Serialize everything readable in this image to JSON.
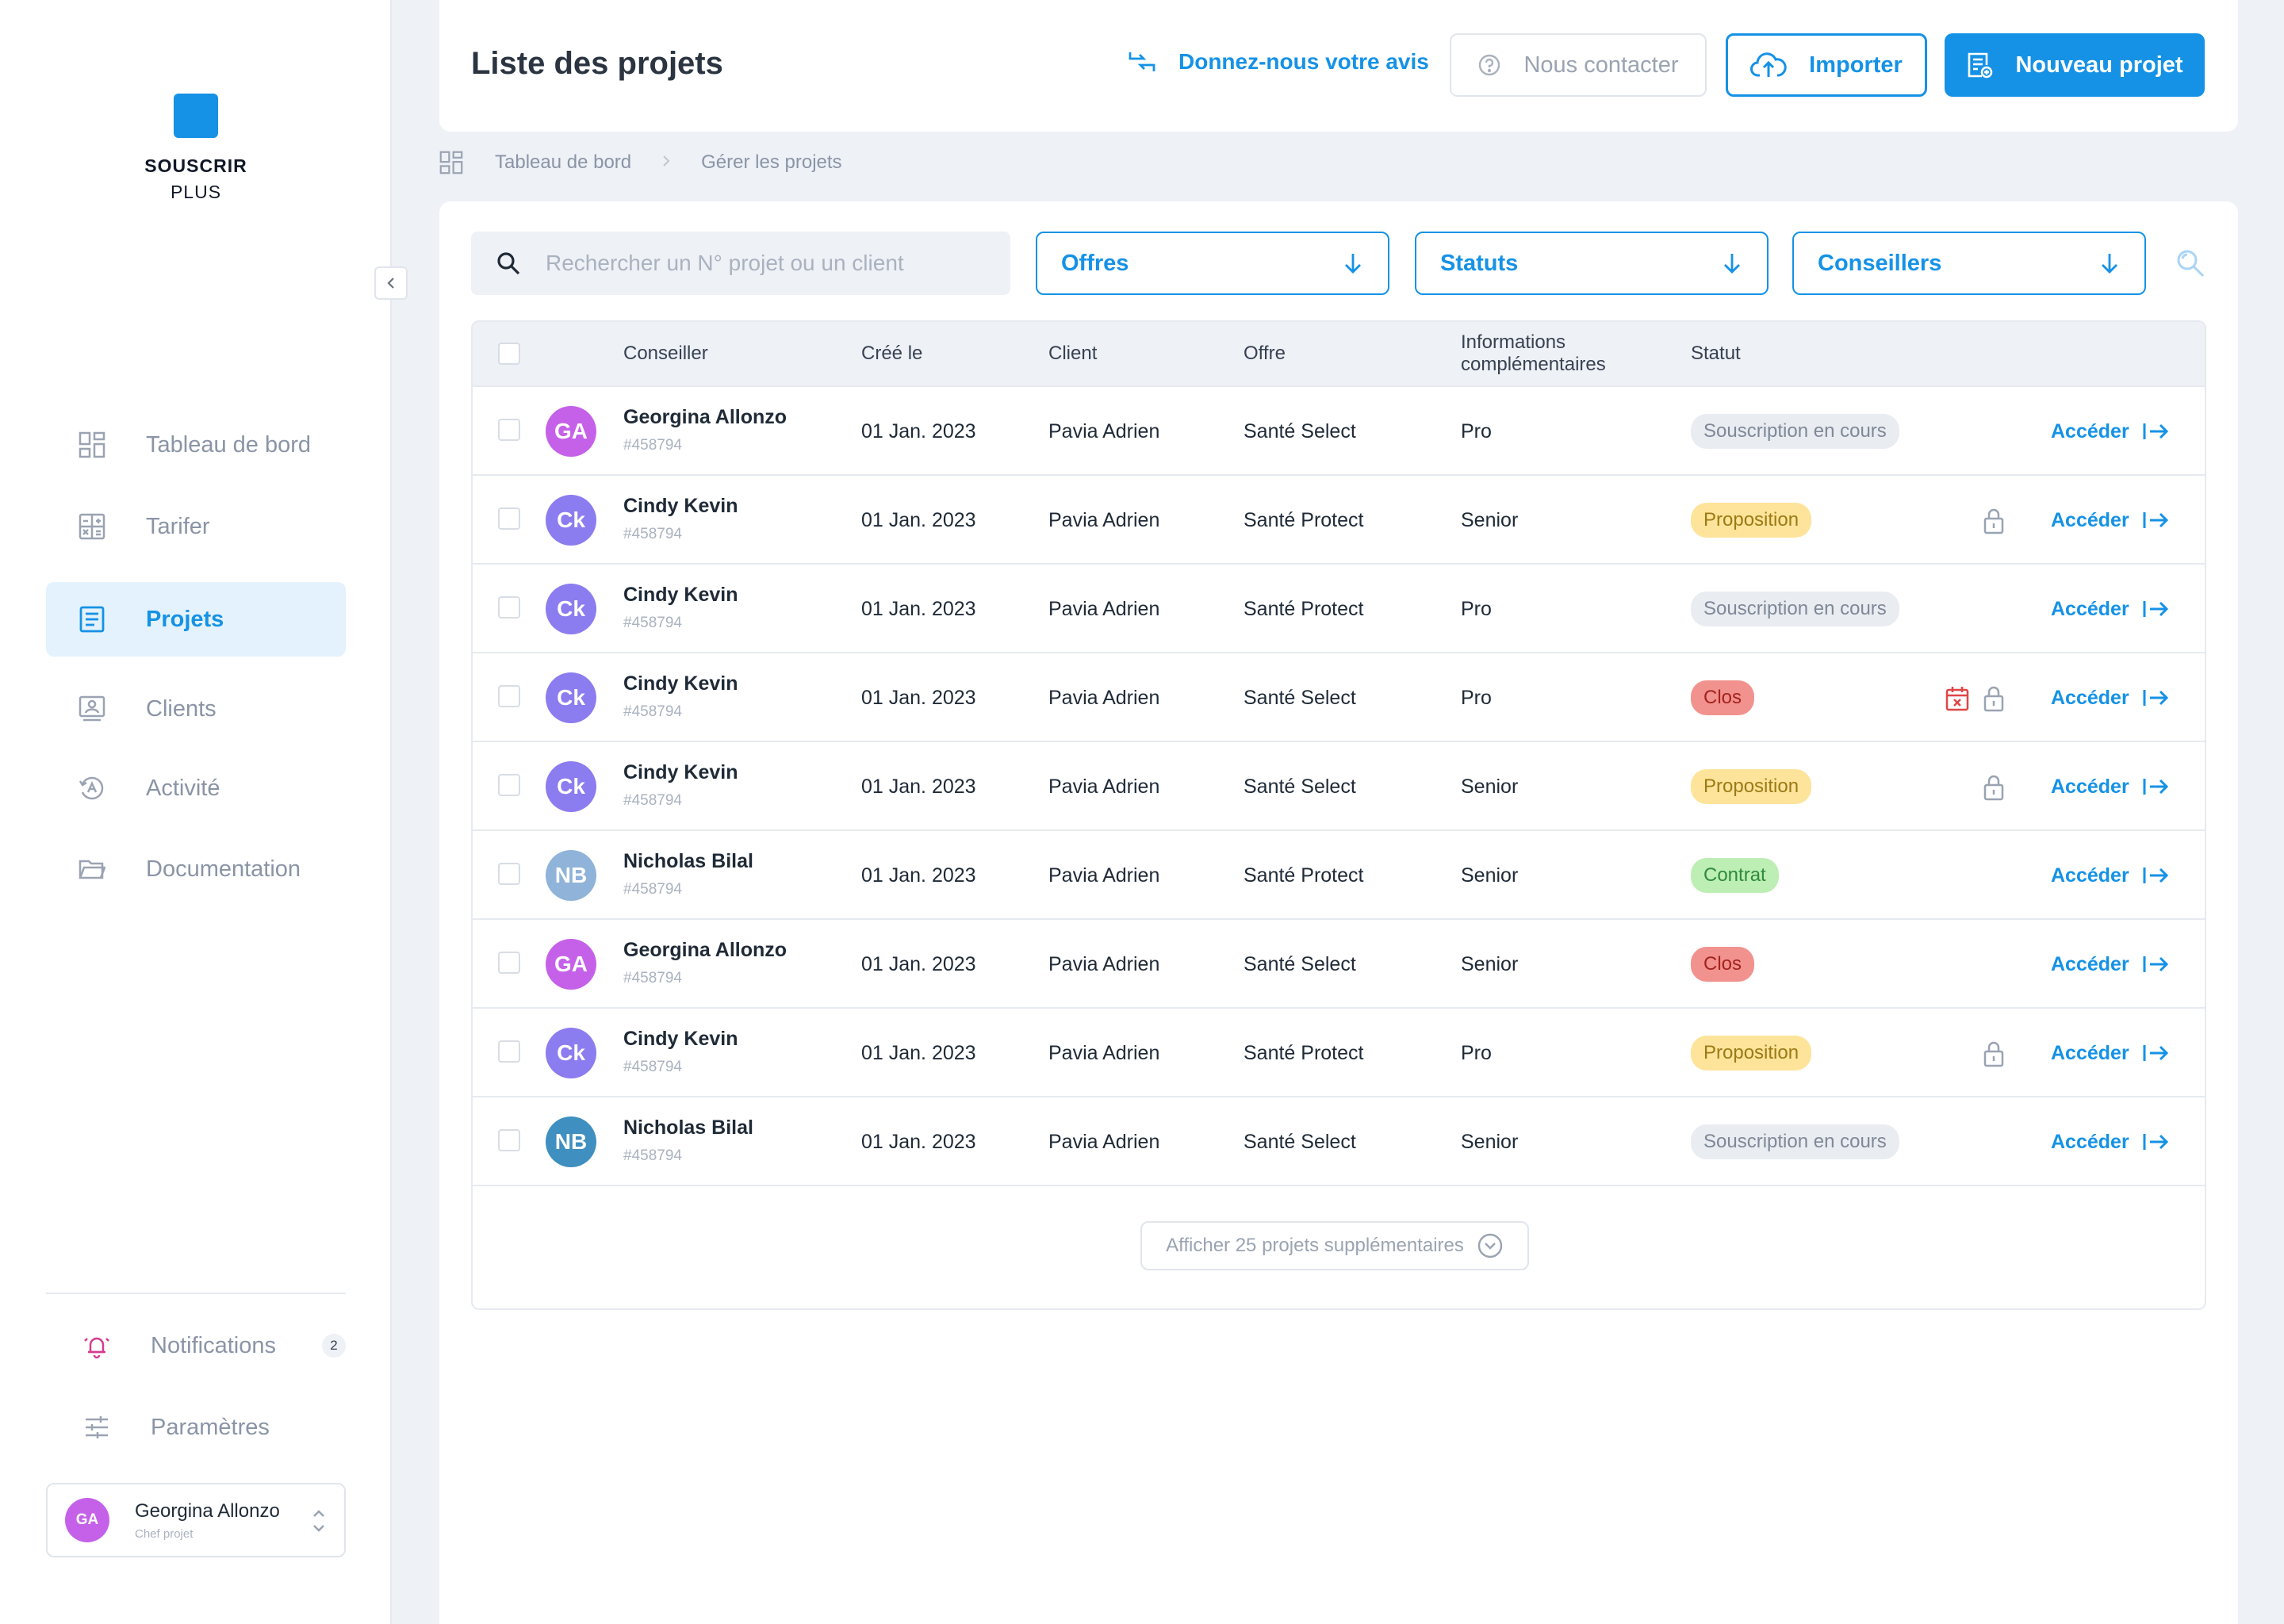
{
  "brand": {
    "line1": "SOUSCRIR",
    "line2": "PLUS",
    "color": "#1592e6"
  },
  "sidebar": {
    "items": [
      {
        "label": "Tableau de bord",
        "icon": "dashboard-icon"
      },
      {
        "label": "Tarifer",
        "icon": "calculator-icon"
      },
      {
        "label": "Projets",
        "icon": "document-icon",
        "active": true
      },
      {
        "label": "Clients",
        "icon": "client-card-icon"
      },
      {
        "label": "Activité",
        "icon": "activity-icon"
      },
      {
        "label": "Documentation",
        "icon": "folder-icon"
      }
    ],
    "notifications": {
      "label": "Notifications",
      "count": "2"
    },
    "settings": {
      "label": "Paramètres"
    },
    "user": {
      "initials": "GA",
      "name": "Georgina Allonzo",
      "role": "Chef projet"
    }
  },
  "header": {
    "title": "Liste des projets",
    "feedback_label": "Donnez-nous votre avis",
    "contact_label": "Nous contacter",
    "import_label": "Importer",
    "new_project_label": "Nouveau projet"
  },
  "breadcrumb": {
    "home": "Tableau de bord",
    "current": "Gérer les projets"
  },
  "filters": {
    "search_placeholder": "Rechercher un N° projet ou un client",
    "offres": "Offres",
    "statuts": "Statuts",
    "conseillers": "Conseillers"
  },
  "table": {
    "columns": {
      "conseiller": "Conseiller",
      "cree_le": "Créé le",
      "client": "Client",
      "offre": "Offre",
      "infos_line1": "Informations",
      "infos_line2": "complémentaires",
      "statut": "Statut"
    },
    "action_label": "Accéder",
    "rows": [
      {
        "initials": "GA",
        "avatar_color": "#c561e8",
        "name": "Georgina Allonzo",
        "id": "#458794",
        "date": "01 Jan. 2023",
        "client": "Pavia Adrien",
        "offre": "Santé Select",
        "info": "Pro",
        "status": "Souscription en cours",
        "status_type": "souscription",
        "lock": false,
        "calendar": false
      },
      {
        "initials": "Ck",
        "avatar_color": "#8b7cf0",
        "name": "Cindy Kevin",
        "id": "#458794",
        "date": "01 Jan. 2023",
        "client": "Pavia Adrien",
        "offre": "Santé Protect",
        "info": "Senior",
        "status": "Proposition",
        "status_type": "proposition",
        "lock": true,
        "calendar": false
      },
      {
        "initials": "Ck",
        "avatar_color": "#8b7cf0",
        "name": "Cindy Kevin",
        "id": "#458794",
        "date": "01 Jan. 2023",
        "client": "Pavia Adrien",
        "offre": "Santé Protect",
        "info": "Pro",
        "status": "Souscription en cours",
        "status_type": "souscription",
        "lock": false,
        "calendar": false
      },
      {
        "initials": "Ck",
        "avatar_color": "#8b7cf0",
        "name": "Cindy Kevin",
        "id": "#458794",
        "date": "01 Jan. 2023",
        "client": "Pavia Adrien",
        "offre": "Santé Select",
        "info": "Pro",
        "status": "Clos",
        "status_type": "clos",
        "lock": true,
        "calendar": true
      },
      {
        "initials": "Ck",
        "avatar_color": "#8b7cf0",
        "name": "Cindy Kevin",
        "id": "#458794",
        "date": "01 Jan. 2023",
        "client": "Pavia Adrien",
        "offre": "Santé Select",
        "info": "Senior",
        "status": "Proposition",
        "status_type": "proposition",
        "lock": true,
        "calendar": false
      },
      {
        "initials": "NB",
        "avatar_color": "#8fb3d9",
        "name": "Nicholas Bilal",
        "id": "#458794",
        "date": "01 Jan. 2023",
        "client": "Pavia Adrien",
        "offre": "Santé Protect",
        "info": "Senior",
        "status": "Contrat",
        "status_type": "contrat",
        "lock": false,
        "calendar": false
      },
      {
        "initials": "GA",
        "avatar_color": "#c561e8",
        "name": "Georgina Allonzo",
        "id": "#458794",
        "date": "01 Jan. 2023",
        "client": "Pavia Adrien",
        "offre": "Santé Select",
        "info": "Senior",
        "status": "Clos",
        "status_type": "clos",
        "lock": false,
        "calendar": false
      },
      {
        "initials": "Ck",
        "avatar_color": "#8b7cf0",
        "name": "Cindy Kevin",
        "id": "#458794",
        "date": "01 Jan. 2023",
        "client": "Pavia Adrien",
        "offre": "Santé Protect",
        "info": "Pro",
        "status": "Proposition",
        "status_type": "proposition",
        "lock": true,
        "calendar": false
      },
      {
        "initials": "NB",
        "avatar_color": "#3f8fc0",
        "name": "Nicholas Bilal",
        "id": "#458794",
        "date": "01 Jan. 2023",
        "client": "Pavia Adrien",
        "offre": "Santé Select",
        "info": "Senior",
        "status": "Souscription en cours",
        "status_type": "souscription",
        "lock": false,
        "calendar": false
      }
    ],
    "more_label": "Afficher 25 projets supplémentaires"
  }
}
